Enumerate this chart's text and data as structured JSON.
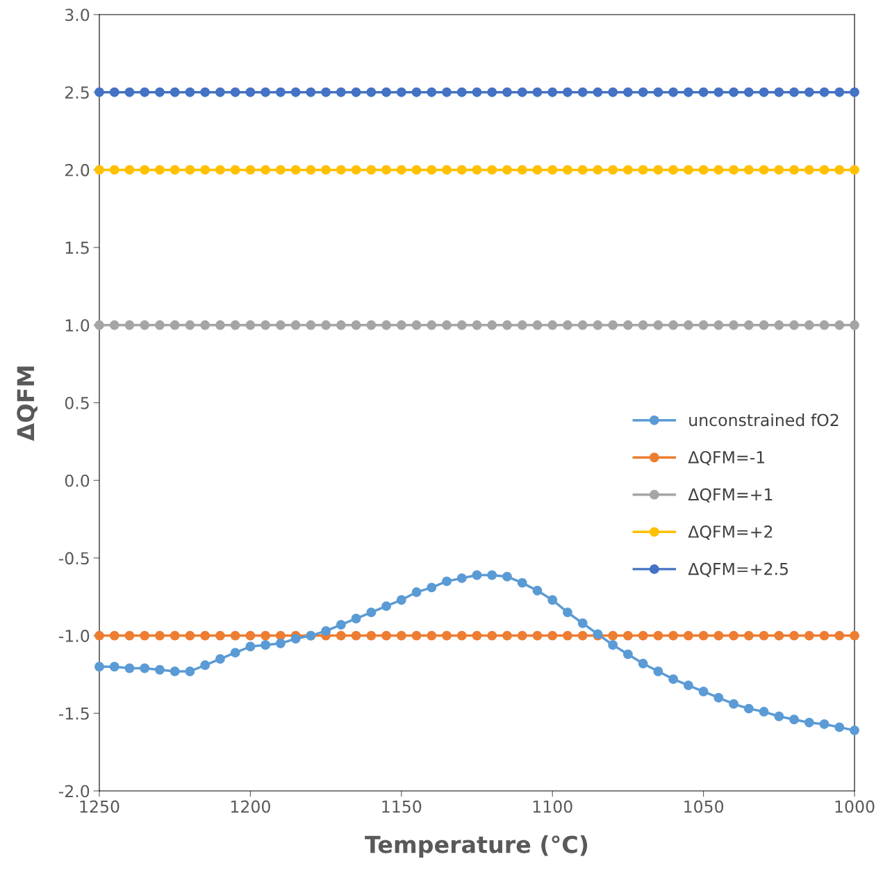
{
  "chart_data": {
    "type": "line",
    "xlabel": "Temperature (°C)",
    "ylabel": "ΔQFM",
    "x": [
      1250,
      1245,
      1240,
      1235,
      1230,
      1225,
      1220,
      1215,
      1210,
      1205,
      1200,
      1195,
      1190,
      1185,
      1180,
      1175,
      1170,
      1165,
      1160,
      1155,
      1150,
      1145,
      1140,
      1135,
      1130,
      1125,
      1120,
      1115,
      1110,
      1105,
      1100,
      1095,
      1090,
      1085,
      1080,
      1075,
      1070,
      1065,
      1060,
      1055,
      1050,
      1045,
      1040,
      1035,
      1030,
      1025,
      1020,
      1015,
      1010,
      1005,
      1000
    ],
    "series": [
      {
        "name": "unconstrained fO2",
        "color": "#5b9bd5",
        "values": [
          -1.2,
          -1.2,
          -1.21,
          -1.21,
          -1.22,
          -1.23,
          -1.23,
          -1.19,
          -1.15,
          -1.11,
          -1.07,
          -1.06,
          -1.05,
          -1.02,
          -1.0,
          -0.97,
          -0.93,
          -0.89,
          -0.85,
          -0.81,
          -0.77,
          -0.72,
          -0.69,
          -0.65,
          -0.63,
          -0.61,
          -0.61,
          -0.62,
          -0.66,
          -0.71,
          -0.77,
          -0.85,
          -0.92,
          -0.99,
          -1.06,
          -1.12,
          -1.18,
          -1.23,
          -1.28,
          -1.32,
          -1.36,
          -1.4,
          -1.44,
          -1.47,
          -1.49,
          -1.52,
          -1.54,
          -1.56,
          -1.57,
          -1.59,
          -1.61
        ]
      },
      {
        "name": "ΔQFM=-1",
        "color": "#ed7d31",
        "values": [
          -1,
          -1,
          -1,
          -1,
          -1,
          -1,
          -1,
          -1,
          -1,
          -1,
          -1,
          -1,
          -1,
          -1,
          -1,
          -1,
          -1,
          -1,
          -1,
          -1,
          -1,
          -1,
          -1,
          -1,
          -1,
          -1,
          -1,
          -1,
          -1,
          -1,
          -1,
          -1,
          -1,
          -1,
          -1,
          -1,
          -1,
          -1,
          -1,
          -1,
          -1,
          -1,
          -1,
          -1,
          -1,
          -1,
          -1,
          -1,
          -1,
          -1,
          -1
        ]
      },
      {
        "name": "ΔQFM=+1",
        "color": "#a5a5a5",
        "values": [
          1,
          1,
          1,
          1,
          1,
          1,
          1,
          1,
          1,
          1,
          1,
          1,
          1,
          1,
          1,
          1,
          1,
          1,
          1,
          1,
          1,
          1,
          1,
          1,
          1,
          1,
          1,
          1,
          1,
          1,
          1,
          1,
          1,
          1,
          1,
          1,
          1,
          1,
          1,
          1,
          1,
          1,
          1,
          1,
          1,
          1,
          1,
          1,
          1,
          1,
          1
        ]
      },
      {
        "name": "ΔQFM=+2",
        "color": "#ffc000",
        "values": [
          2,
          2,
          2,
          2,
          2,
          2,
          2,
          2,
          2,
          2,
          2,
          2,
          2,
          2,
          2,
          2,
          2,
          2,
          2,
          2,
          2,
          2,
          2,
          2,
          2,
          2,
          2,
          2,
          2,
          2,
          2,
          2,
          2,
          2,
          2,
          2,
          2,
          2,
          2,
          2,
          2,
          2,
          2,
          2,
          2,
          2,
          2,
          2,
          2,
          2,
          2
        ]
      },
      {
        "name": "ΔQFM=+2.5",
        "color": "#4472c4",
        "values": [
          2.5,
          2.5,
          2.5,
          2.5,
          2.5,
          2.5,
          2.5,
          2.5,
          2.5,
          2.5,
          2.5,
          2.5,
          2.5,
          2.5,
          2.5,
          2.5,
          2.5,
          2.5,
          2.5,
          2.5,
          2.5,
          2.5,
          2.5,
          2.5,
          2.5,
          2.5,
          2.5,
          2.5,
          2.5,
          2.5,
          2.5,
          2.5,
          2.5,
          2.5,
          2.5,
          2.5,
          2.5,
          2.5,
          2.5,
          2.5,
          2.5,
          2.5,
          2.5,
          2.5,
          2.5,
          2.5,
          2.5,
          2.5,
          2.5,
          2.5,
          2.5
        ]
      }
    ],
    "xlim": [
      1250,
      1000
    ],
    "xticks": [
      1250,
      1200,
      1150,
      1100,
      1050,
      1000
    ],
    "ylim": [
      -2.0,
      3.0
    ],
    "yticks": [
      {
        "value": -2.0,
        "label": "-2.0"
      },
      {
        "value": -1.5,
        "label": "-1.5"
      },
      {
        "value": -1.0,
        "label": "-1.0"
      },
      {
        "value": -0.5,
        "label": "-0.5"
      },
      {
        "value": 0.0,
        "label": "0.0"
      },
      {
        "value": 0.5,
        "label": "0.5"
      },
      {
        "value": 1.0,
        "label": "1.0"
      },
      {
        "value": 1.5,
        "label": "1.5"
      },
      {
        "value": 2.0,
        "label": "2.0"
      },
      {
        "value": 2.5,
        "label": "2.5"
      },
      {
        "value": 3.0,
        "label": "3.0"
      }
    ],
    "grid": false,
    "legend": "center right",
    "marker": "circle",
    "line_style": "solid"
  }
}
